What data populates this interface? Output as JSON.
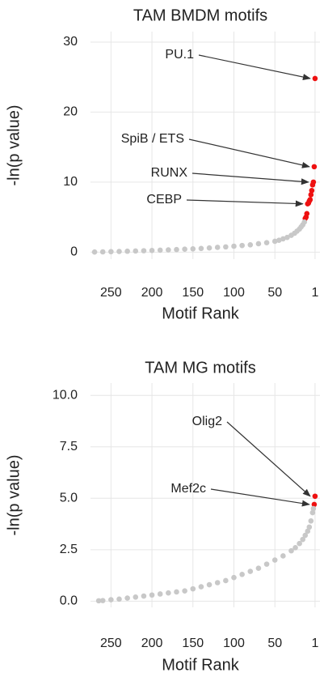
{
  "chart_data": [
    {
      "type": "scatter",
      "title": "TAM BMDM motifs",
      "x_label": "Motif Rank",
      "y_label": "-ln(p value)",
      "xlim": [
        275,
        -5
      ],
      "xticks": [
        250,
        200,
        150,
        100,
        50,
        1
      ],
      "ylim": [
        -1,
        31.5
      ],
      "yticks": [
        0,
        10,
        20,
        30
      ],
      "grid": true,
      "series": [
        {
          "color": "#ee1111",
          "x": [
            1,
            2,
            3,
            4,
            5,
            6,
            7,
            8,
            9,
            10,
            11,
            12,
            13
          ],
          "values": [
            24.8,
            12.2,
            10.0,
            9.6,
            8.8,
            8.2,
            7.5,
            7.3,
            7.0,
            6.9,
            5.5,
            5.0,
            4.8
          ]
        },
        {
          "color": "#c8c8c8",
          "x": [
            14,
            16,
            18,
            20,
            23,
            26,
            30,
            35,
            40,
            45,
            50,
            60,
            70,
            80,
            90,
            100,
            110,
            120,
            130,
            140,
            150,
            160,
            170,
            180,
            190,
            200,
            210,
            220,
            230,
            240,
            250,
            260,
            270
          ],
          "values": [
            4.3,
            3.9,
            3.6,
            3.3,
            3.0,
            2.7,
            2.4,
            2.1,
            1.9,
            1.7,
            1.55,
            1.35,
            1.2,
            1.05,
            0.95,
            0.85,
            0.75,
            0.68,
            0.6,
            0.53,
            0.47,
            0.42,
            0.37,
            0.32,
            0.28,
            0.24,
            0.2,
            0.16,
            0.13,
            0.1,
            0.07,
            0.04,
            0.02
          ]
        }
      ],
      "annotations": [
        "PU.1",
        "SpiB / ETS",
        "RUNX",
        "CEBP"
      ]
    },
    {
      "type": "scatter",
      "title": "TAM MG motifs",
      "x_label": "Motif Rank",
      "y_label": "-ln(p value)",
      "xlim": [
        275,
        -5
      ],
      "xticks": [
        250,
        200,
        150,
        100,
        50,
        1
      ],
      "ylim": [
        -0.3,
        10.6
      ],
      "yticks": [
        {
          "value": 0,
          "label": "0.0"
        },
        2.5,
        {
          "value": 5,
          "label": "5.0"
        },
        7.5,
        {
          "value": 10,
          "label": "10.0"
        }
      ],
      "grid": true,
      "series": [
        {
          "color": "#ee1111",
          "x": [
            1,
            2
          ],
          "values": [
            5.1,
            4.7
          ]
        },
        {
          "color": "#c8c8c8",
          "x": [
            3,
            4,
            6,
            8,
            10,
            13,
            16,
            20,
            25,
            30,
            40,
            50,
            60,
            70,
            80,
            90,
            100,
            110,
            120,
            130,
            140,
            150,
            160,
            170,
            180,
            190,
            200,
            210,
            220,
            230,
            240,
            250,
            260,
            265
          ],
          "values": [
            4.5,
            4.3,
            3.9,
            3.6,
            3.4,
            3.2,
            3.0,
            2.8,
            2.6,
            2.45,
            2.2,
            2.0,
            1.8,
            1.6,
            1.45,
            1.3,
            1.15,
            1.0,
            0.9,
            0.8,
            0.7,
            0.6,
            0.5,
            0.45,
            0.4,
            0.35,
            0.3,
            0.25,
            0.2,
            0.15,
            0.1,
            0.07,
            0.03,
            0.02
          ]
        }
      ],
      "annotations": [
        "Olig2",
        "Mef2c"
      ]
    }
  ]
}
